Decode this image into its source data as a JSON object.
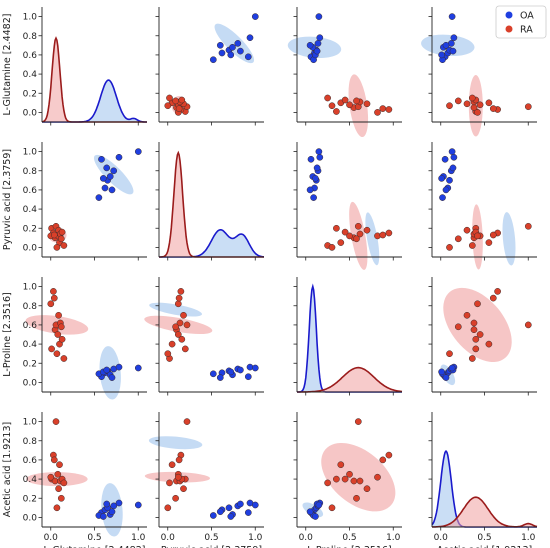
{
  "chart_data": {
    "type": "scatter",
    "title": "",
    "variables": [
      "L-Glutamine [2.4482]",
      "Pyruvic acid [2.3759]",
      "L-Proline [2.3516]",
      "Acetic acid [1.9213]"
    ],
    "range": [
      -0.1,
      1.1
    ],
    "ticks": [
      0.0,
      0.2,
      0.4,
      0.6,
      0.8,
      1.0
    ],
    "tick_labels_x": [
      "0.0",
      "0.5",
      "1.0"
    ],
    "tick_labels_y": [
      "0.0",
      "0.2",
      "0.4",
      "0.6",
      "0.8",
      "1.0"
    ],
    "diag_ylim": [
      0,
      8.5
    ],
    "legend": {
      "placement": "top-right"
    },
    "series": [
      {
        "name": "OA",
        "color": "#1f3fe0",
        "fill": "#9ec3ec",
        "points": [
          [
            0.58,
            0.92,
            0.06,
            0.05
          ],
          [
            0.62,
            0.62,
            0.1,
            0.08
          ],
          [
            0.65,
            0.7,
            0.12,
            0.1
          ],
          [
            0.68,
            0.74,
            0.08,
            0.03
          ],
          [
            0.72,
            0.8,
            0.14,
            0.12
          ],
          [
            0.55,
            0.52,
            0.09,
            0.02
          ],
          [
            0.78,
            0.94,
            0.16,
            0.15
          ],
          [
            0.7,
            0.6,
            0.05,
            0.06
          ],
          [
            0.6,
            0.72,
            0.11,
            0.01
          ],
          [
            0.64,
            0.83,
            0.13,
            0.14
          ],
          [
            1.0,
            1.0,
            0.15,
            0.13
          ]
        ],
        "ellipses": [
          [
            0,
            0,
            0,
            0
          ],
          [
            [
              0.72,
              0.76,
              0.09,
              0.28,
              45
            ],
            0,
            0,
            0
          ],
          [
            [
              0.68,
              0.1,
              0.12,
              0.28,
              5
            ],
            [
              0.09,
              0.76,
              0.06,
              0.28,
              80
            ],
            0,
            0
          ],
          [
            [
              0.7,
              0.08,
              0.12,
              0.28,
              5
            ],
            [
              0.09,
              0.78,
              0.07,
              0.28,
              85
            ],
            [
              0.08,
              0.08,
              0.06,
              0.12,
              60
            ],
            0
          ]
        ],
        "kde": [
          {
            "mean": 0.66,
            "sd": 0.09,
            "peak": 3.1,
            "mean2": 0.95,
            "sd2": 0.04,
            "peak2": 0.25
          },
          {
            "mean": 0.6,
            "sd": 0.1,
            "peak": 2.0,
            "mean2": 0.85,
            "sd2": 0.08,
            "peak2": 1.6
          },
          {
            "mean": 0.08,
            "sd": 0.04,
            "peak": 7.8
          },
          {
            "mean": 0.06,
            "sd": 0.06,
            "peak": 5.6
          }
        ]
      },
      {
        "name": "RA",
        "color": "#d9402a",
        "fill": "#f0a0a0",
        "points": [
          [
            0.01,
            0.2,
            0.35,
            0.4
          ],
          [
            0.03,
            0.15,
            0.95,
            0.65
          ],
          [
            0.05,
            0.1,
            0.55,
            0.38
          ],
          [
            0.06,
            0.22,
            0.6,
            1.0
          ],
          [
            0.08,
            0.12,
            0.5,
            0.45
          ],
          [
            0.09,
            0.18,
            0.7,
            0.3
          ],
          [
            0.1,
            0.05,
            0.4,
            0.55
          ],
          [
            0.11,
            0.14,
            0.62,
            0.38
          ],
          [
            0.12,
            0.09,
            0.58,
            0.2
          ],
          [
            0.13,
            0.16,
            0.45,
            0.4
          ],
          [
            0.0,
            0.12,
            0.82,
            0.42
          ],
          [
            0.15,
            0.02,
            0.25,
            0.36
          ],
          [
            0.04,
            0.13,
            0.88,
            0.6
          ],
          [
            0.07,
            0.0,
            0.3,
            0.1
          ]
        ],
        "ellipses": [
          [
            0,
            0,
            0,
            0
          ],
          [
            [
              0.08,
              0.12,
              0.1,
              0.07,
              10
            ],
            0,
            0,
            0
          ],
          [
            [
              0.07,
              0.6,
              0.1,
              0.33,
              82
            ],
            [
              0.12,
              0.6,
              0.08,
              0.36,
              80
            ],
            0,
            0
          ],
          [
            [
              0.07,
              0.4,
              0.08,
              0.32,
              90
            ],
            [
              0.11,
              0.42,
              0.06,
              0.34,
              88
            ],
            [
              0.6,
              0.42,
              0.3,
              0.45,
              50
            ],
            0
          ]
        ],
        "kde": [
          {
            "mean": 0.06,
            "sd": 0.045,
            "peak": 6.2
          },
          {
            "mean": 0.12,
            "sd": 0.05,
            "peak": 7.7
          },
          {
            "mean": 0.6,
            "sd": 0.18,
            "peak": 1.8
          },
          {
            "mean": 0.4,
            "sd": 0.14,
            "peak": 2.2,
            "mean2": 1.0,
            "sd2": 0.05,
            "peak2": 0.25
          }
        ]
      }
    ]
  }
}
